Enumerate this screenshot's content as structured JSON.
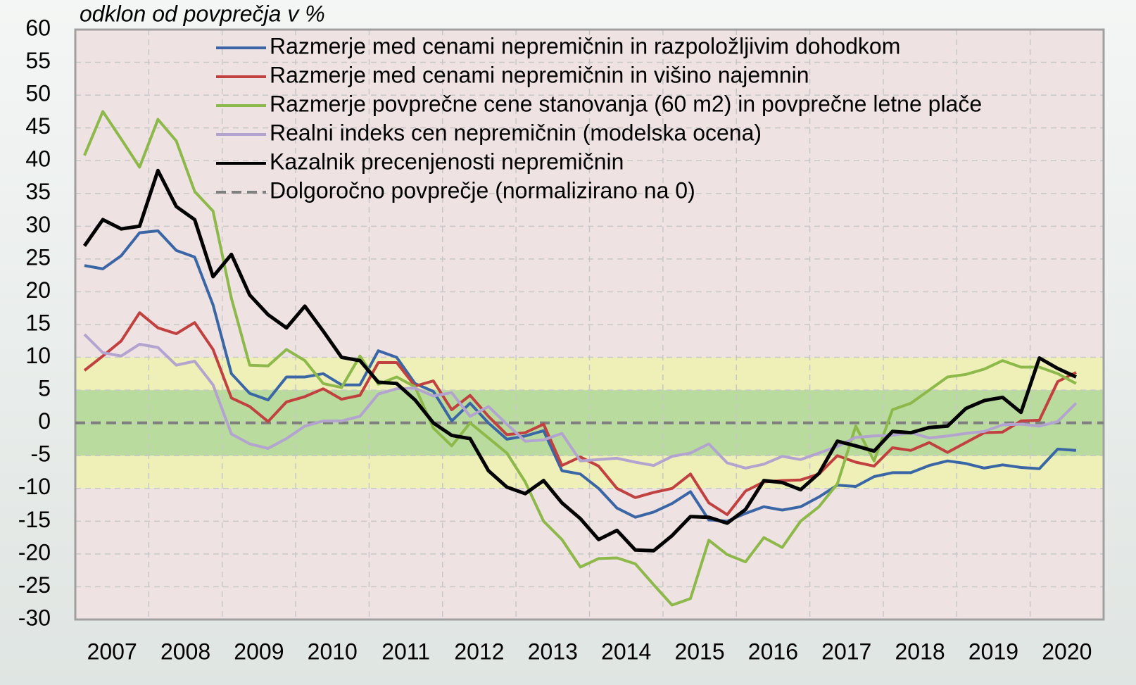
{
  "chart_data": {
    "type": "line",
    "title": "odklon od povprečja v %",
    "categories": [
      "2007",
      null,
      null,
      null,
      "2008",
      null,
      null,
      null,
      "2009",
      null,
      null,
      null,
      "2010",
      null,
      null,
      null,
      "2011",
      null,
      null,
      null,
      "2012",
      null,
      null,
      null,
      "2013",
      null,
      null,
      null,
      "2014",
      null,
      null,
      null,
      "2015",
      null,
      null,
      null,
      "2016",
      null,
      null,
      null,
      "2017",
      null,
      null,
      null,
      "2018",
      null,
      null,
      null,
      "2019",
      null,
      null,
      null,
      "2020",
      null,
      null
    ],
    "series": [
      {
        "name": "Razmerje med cenami nepremičnin in razpoložljivim dohodkom",
        "color": "#3a66a5",
        "values": [
          24,
          23.5,
          25.5,
          29,
          29.3,
          26.3,
          25.3,
          18,
          7.5,
          4.5,
          3.5,
          7,
          7,
          7.5,
          5.8,
          5.8,
          11,
          10,
          6,
          4.8,
          0.3,
          3,
          0,
          -2.5,
          -2,
          -1.2,
          -7.3,
          -7.8,
          -10,
          -13,
          -14.4,
          -13.6,
          -12.3,
          -10.5,
          -14.8,
          -15,
          -13.8,
          -12.8,
          -13.3,
          -12.8,
          -11.3,
          -9.5,
          -9.7,
          -8.2,
          -7.6,
          -7.6,
          -6.5,
          -5.8,
          -6.2,
          -6.9,
          -6.4,
          -6.8,
          -7,
          -4,
          -4.2
        ]
      },
      {
        "name": "Razmerje med cenami nepremičnin in višino najemnin",
        "color": "#c0413f",
        "values": [
          8,
          10.2,
          12.5,
          16.8,
          14.5,
          13.6,
          15.3,
          11.2,
          3.8,
          2.5,
          0.2,
          3.2,
          4,
          5.2,
          3.6,
          4.2,
          9.2,
          9.2,
          5.6,
          6.4,
          2,
          4.2,
          1,
          -1.8,
          -1.5,
          -0.2,
          -6.5,
          -5.2,
          -6.6,
          -10,
          -11.4,
          -10.6,
          -10,
          -7.8,
          -12.2,
          -14,
          -10.4,
          -9,
          -8.8,
          -8.7,
          -7.8,
          -5,
          -6,
          -6.6,
          -3.8,
          -4.2,
          -3,
          -4.5,
          -3,
          -1.5,
          -1.4,
          0.3,
          0.4,
          6.3,
          7.7
        ]
      },
      {
        "name": "Razmerje povprečne cene stanovanja (60 m2) in povprečne letne plače",
        "color": "#8db84a",
        "values": [
          40.8,
          47.5,
          43.3,
          39,
          46.3,
          43,
          35.3,
          32.3,
          19,
          8.8,
          8.7,
          11.2,
          9.5,
          6,
          5.4,
          10.2,
          5.9,
          7,
          5.5,
          -0.8,
          -3.5,
          0,
          -2.3,
          -4.6,
          -9,
          -15,
          -17.8,
          -22,
          -20.7,
          -20.6,
          -21.5,
          -24.7,
          -27.8,
          -26.8,
          -17.9,
          -20.1,
          -21.2,
          -17.5,
          -19,
          -15,
          -12.8,
          -9.3,
          -0.5,
          -5.8,
          2,
          3,
          5,
          7,
          7.4,
          8.2,
          9.5,
          8.5,
          8.5,
          7.5,
          6
        ]
      },
      {
        "name": "Realni indeks cen nepremičnin (modelska ocena)",
        "color": "#b3a4cf",
        "values": [
          13.5,
          10.7,
          10.2,
          12,
          11.5,
          8.8,
          9.4,
          5.8,
          -1.7,
          -3.2,
          -3.9,
          -2.4,
          -0.5,
          0.3,
          0.3,
          1,
          4.4,
          5.2,
          5.3,
          4.1,
          4.6,
          1,
          2.5,
          -0.2,
          -2.8,
          -2.6,
          -1.6,
          -5.8,
          -5.6,
          -5.4,
          -6,
          -6.5,
          -5.1,
          -4.6,
          -3.2,
          -6.1,
          -6.9,
          -6.3,
          -5.1,
          -5.6,
          -4.6,
          -3.6,
          -2.2,
          -2,
          -1.9,
          -1.5,
          -2.3,
          -2,
          -1.6,
          -1.3,
          -0.3,
          -0.2,
          -0.5,
          0.2,
          3
        ]
      },
      {
        "name": "Kazalnik precenjenosti nepremičnin",
        "color": "#000000",
        "values": [
          27,
          31,
          29.6,
          30,
          38.5,
          33,
          31,
          22.3,
          25.7,
          19.5,
          16.5,
          14.5,
          17.8,
          14,
          10,
          9.5,
          6.2,
          6,
          3.5,
          0,
          -1.9,
          -2.4,
          -7.3,
          -9.8,
          -10.8,
          -8.8,
          -12.2,
          -14.6,
          -17.8,
          -16.4,
          -19.4,
          -19.5,
          -17.2,
          -14.3,
          -14.4,
          -15.3,
          -13.2,
          -8.8,
          -9.1,
          -10.2,
          -7.7,
          -2.8,
          -3.5,
          -4.3,
          -1.3,
          -1.5,
          -0.7,
          -0.5,
          2.2,
          3.4,
          3.9,
          1.6,
          9.9,
          8.3,
          7
        ]
      }
    ],
    "reference_line": {
      "name": "Dolgoročno povprečje (normalizirano na 0)",
      "value": 0,
      "color": "#7f7f7f"
    },
    "bands": [
      {
        "from": -10,
        "to": 10,
        "color": "#eef0b8"
      },
      {
        "from": -5,
        "to": 5,
        "color": "#b9dc9e"
      }
    ],
    "background": "#efe2e2",
    "ylim": [
      -30,
      60
    ],
    "yticks": [
      -30,
      -25,
      -20,
      -15,
      -10,
      -5,
      0,
      5,
      10,
      15,
      20,
      25,
      30,
      35,
      40,
      45,
      50,
      55,
      60
    ],
    "grid": true,
    "legend": "top"
  }
}
